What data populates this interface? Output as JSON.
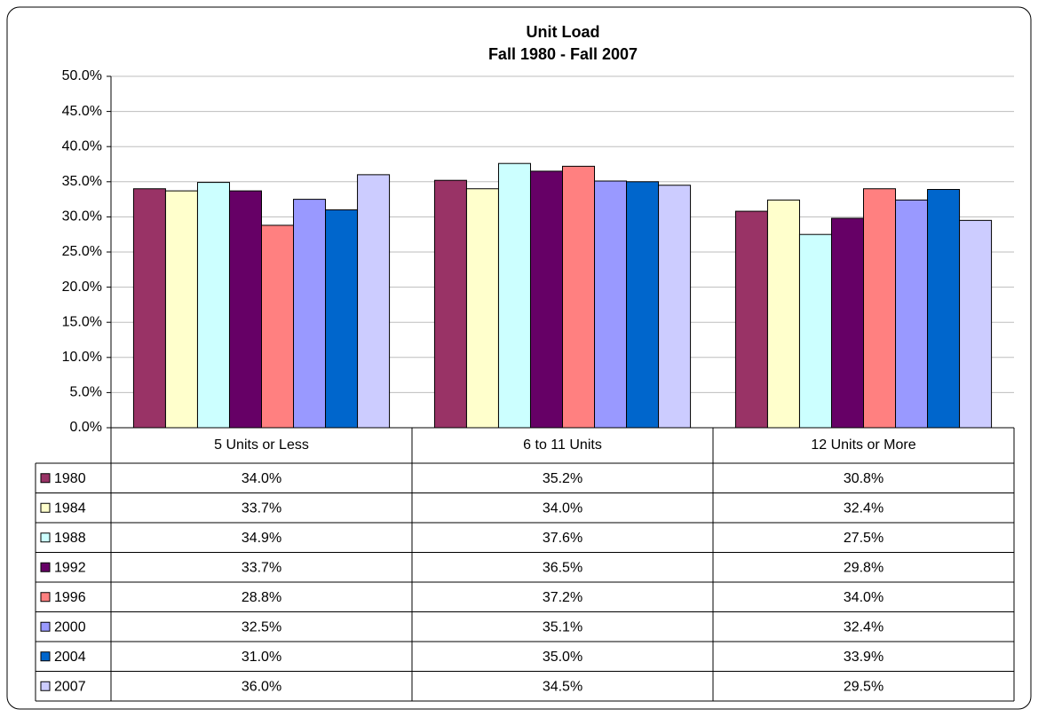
{
  "chart_data": {
    "type": "bar",
    "title": "Unit Load",
    "subtitle": "Fall 1980 - Fall 2007",
    "categories": [
      "5 Units or Less",
      "6 to 11 Units",
      "12 Units or More"
    ],
    "series": [
      {
        "name": "1980",
        "color": "#993366",
        "values": [
          34.0,
          35.2,
          30.8
        ],
        "value_labels": [
          "34.0%",
          "35.2%",
          "30.8%"
        ]
      },
      {
        "name": "1984",
        "color": "#FFFFCC",
        "values": [
          33.7,
          34.0,
          32.4
        ],
        "value_labels": [
          "33.7%",
          "34.0%",
          "32.4%"
        ]
      },
      {
        "name": "1988",
        "color": "#CCFFFF",
        "values": [
          34.9,
          37.6,
          27.5
        ],
        "value_labels": [
          "34.9%",
          "37.6%",
          "27.5%"
        ]
      },
      {
        "name": "1992",
        "color": "#660066",
        "values": [
          33.7,
          36.5,
          29.8
        ],
        "value_labels": [
          "33.7%",
          "36.5%",
          "29.8%"
        ]
      },
      {
        "name": "1996",
        "color": "#FF8080",
        "values": [
          28.8,
          37.2,
          34.0
        ],
        "value_labels": [
          "28.8%",
          "37.2%",
          "34.0%"
        ]
      },
      {
        "name": "2000",
        "color": "#9999FF",
        "values": [
          32.5,
          35.1,
          32.4
        ],
        "value_labels": [
          "32.5%",
          "35.1%",
          "32.4%"
        ]
      },
      {
        "name": "2004",
        "color": "#0066CC",
        "values": [
          31.0,
          35.0,
          33.9
        ],
        "value_labels": [
          "31.0%",
          "35.0%",
          "33.9%"
        ]
      },
      {
        "name": "2007",
        "color": "#CCCCFF",
        "values": [
          36.0,
          34.5,
          29.5
        ],
        "value_labels": [
          "36.0%",
          "34.5%",
          "29.5%"
        ]
      }
    ],
    "ylim": [
      0,
      50
    ],
    "yticks": [
      {
        "value": 0,
        "label": "0.0%"
      },
      {
        "value": 5,
        "label": "5.0%"
      },
      {
        "value": 10,
        "label": "10.0%"
      },
      {
        "value": 15,
        "label": "15.0%"
      },
      {
        "value": 20,
        "label": "20.0%"
      },
      {
        "value": 25,
        "label": "25.0%"
      },
      {
        "value": 30,
        "label": "30.0%"
      },
      {
        "value": 35,
        "label": "35.0%"
      },
      {
        "value": 40,
        "label": "40.0%"
      },
      {
        "value": 45,
        "label": "45.0%"
      },
      {
        "value": 50,
        "label": "50.0%"
      }
    ],
    "grid": true
  }
}
